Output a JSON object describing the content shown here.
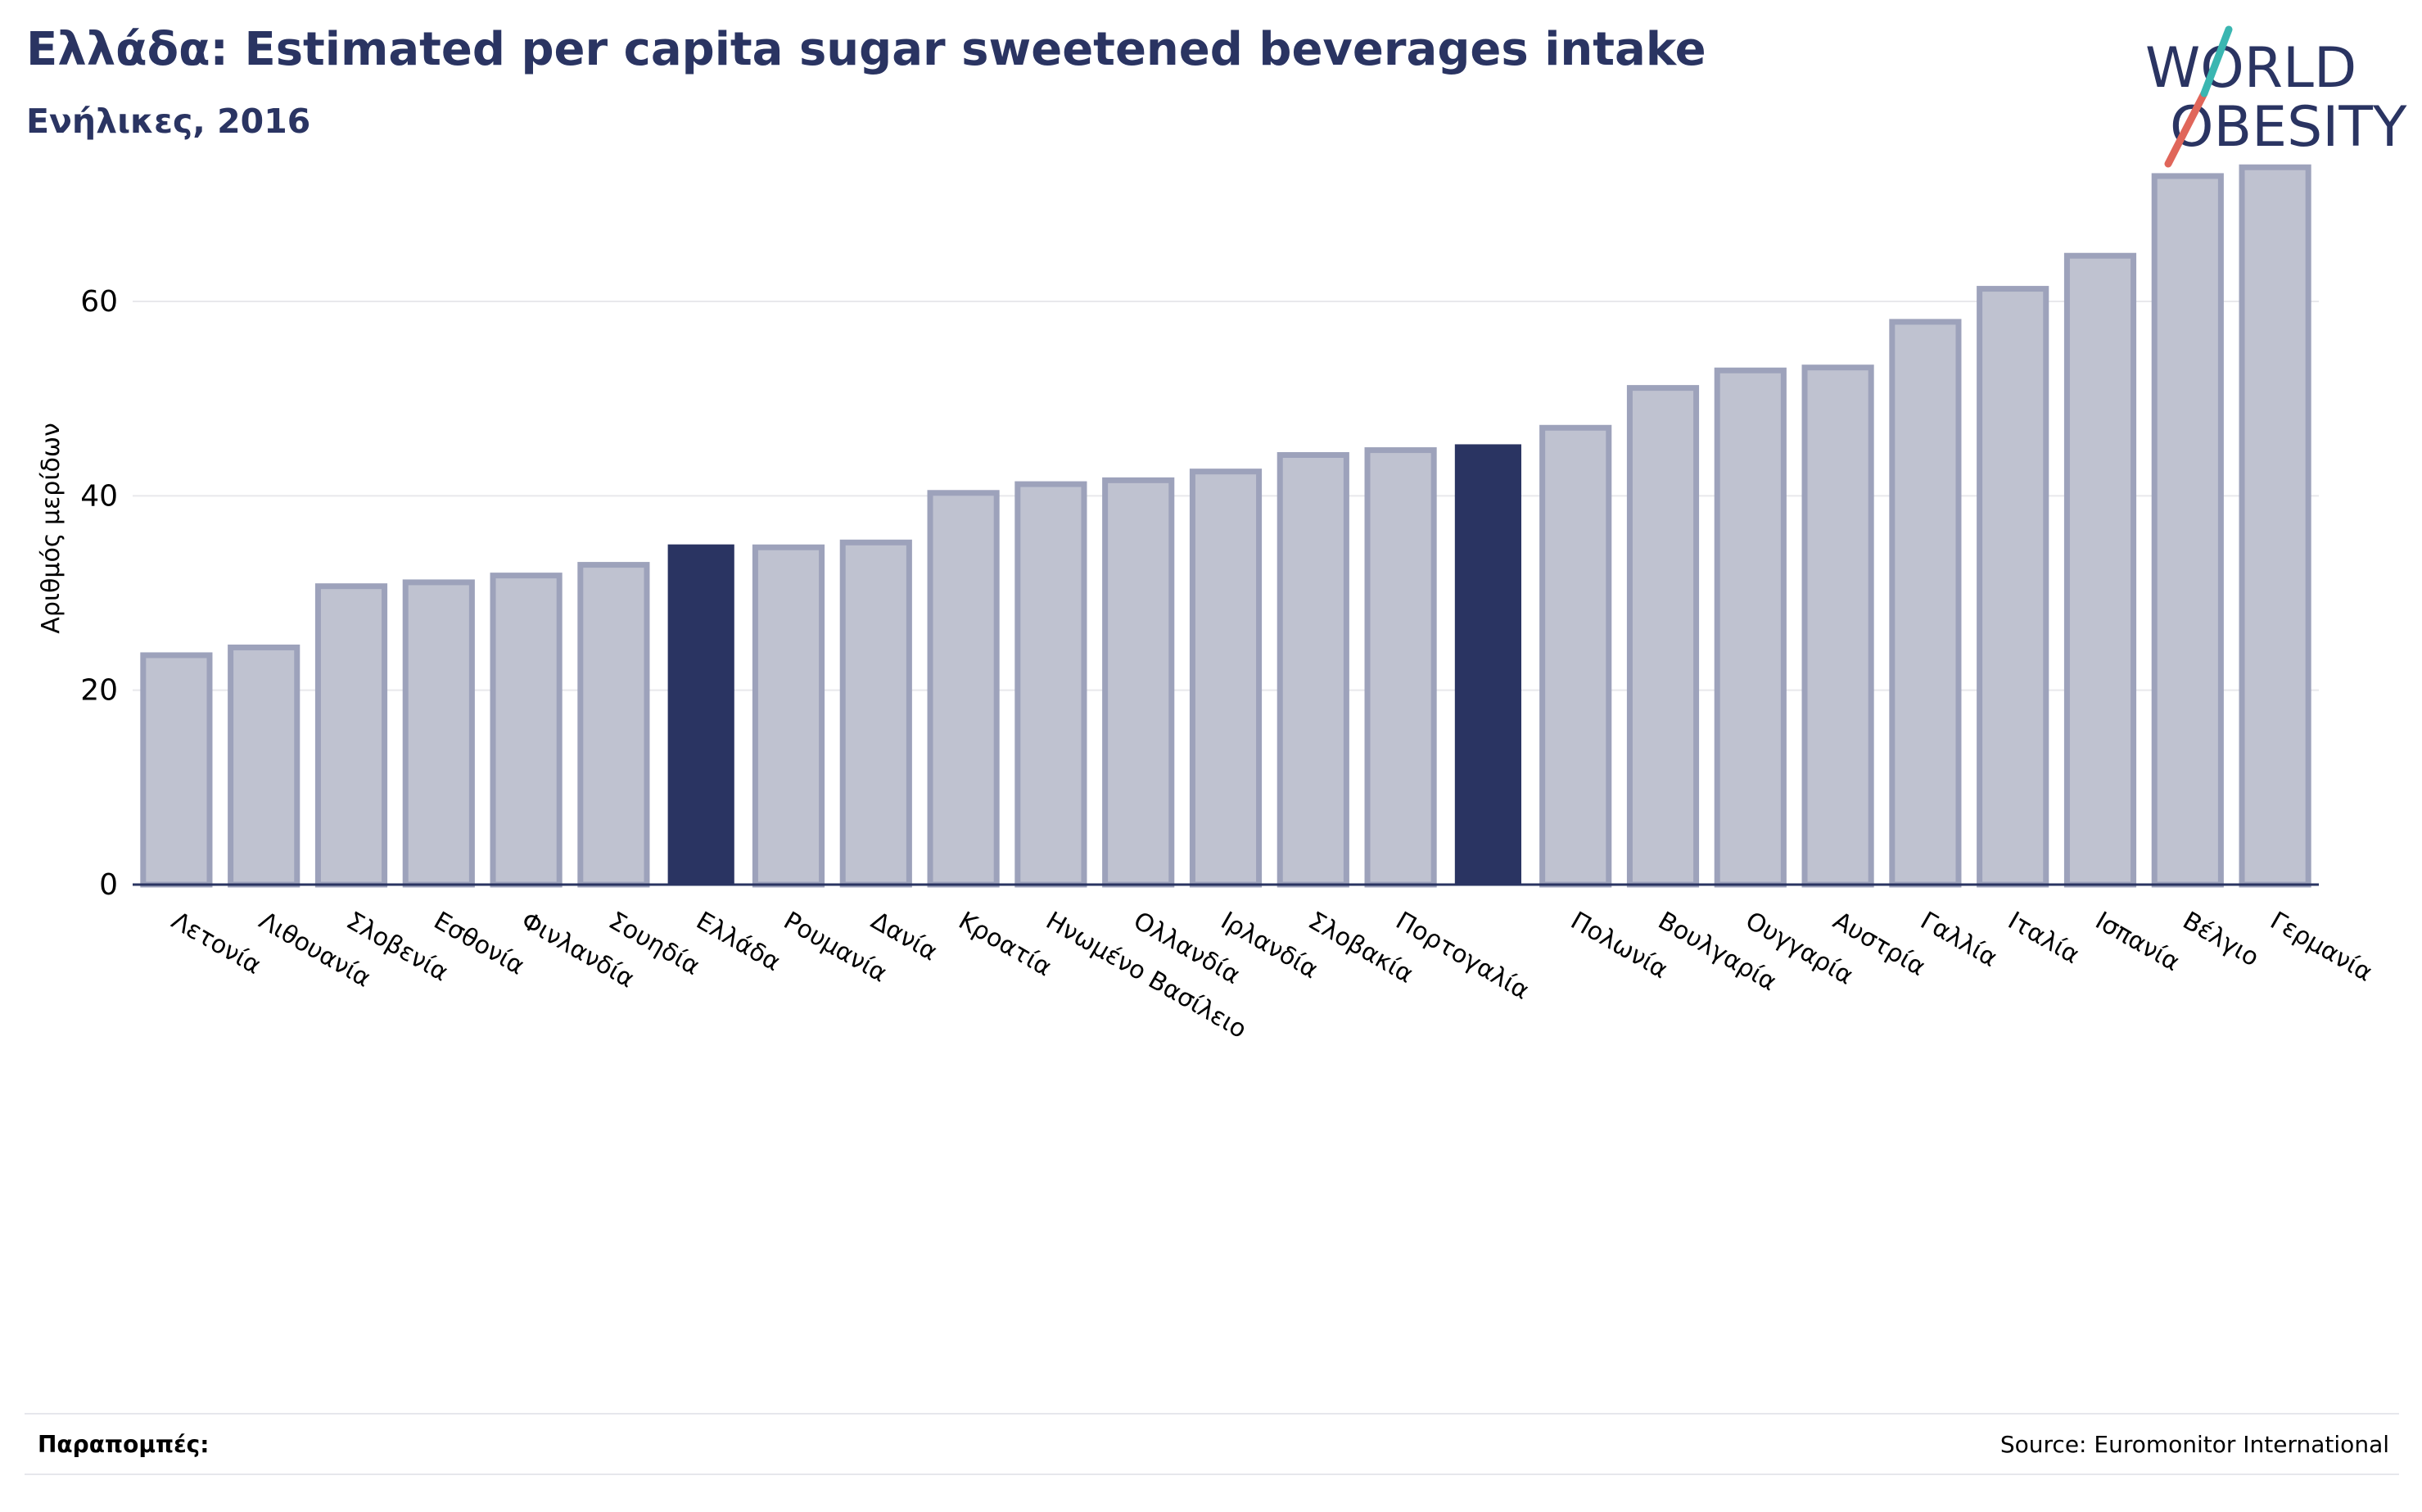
{
  "header": {
    "title": "Ελλάδα: Estimated per capita sugar sweetened beverages intake",
    "subtitle": "Ενήλικες, 2016"
  },
  "logo": {
    "line1": "WORLD",
    "line2": "OBESITY",
    "navy": "#2a3462",
    "teal": "#3ab6b1",
    "coral": "#e0665a"
  },
  "footer": {
    "references_label": "Παραπομπές:",
    "source": "Source: Euromonitor International"
  },
  "colors": {
    "bar_fill": "#bfc2d0",
    "bar_stroke": "#9da2bb",
    "highlight": "#2a3462",
    "grid": "#e8e8ec",
    "axis": "#2a3462"
  },
  "chart_data": {
    "type": "bar",
    "title": "Ελλάδα: Estimated per capita sugar sweetened beverages intake",
    "subtitle": "Ενήλικες, 2016",
    "ylabel": "Αριθμός μερίδων",
    "xlabel": "",
    "ylim": [
      0,
      75
    ],
    "yticks": [
      0,
      20,
      40,
      60
    ],
    "grid": true,
    "categories": [
      "Λετονία",
      "Λιθουανία",
      "Σλοβενία",
      "Εσθονία",
      "Φινλανδία",
      "Σουηδία",
      "Ελλάδα",
      "Ρουμανία",
      "Δανία",
      "Κροατία",
      "Ηνωμένο Βασίλειο",
      "Ολλανδία",
      "Ιρλανδία",
      "Σλοβακία",
      "Πορτογαλία",
      "",
      "Πολωνία",
      "Βουλγαρία",
      "Ουγγαρία",
      "Αυστρία",
      "Γαλλία",
      "Ιταλία",
      "Ισπανία",
      "Βέλγιο",
      "Γερμανία"
    ],
    "values": [
      23.6,
      24.4,
      30.7,
      31.1,
      31.8,
      32.9,
      35.0,
      34.7,
      35.2,
      40.3,
      41.2,
      41.6,
      42.5,
      44.2,
      44.7,
      45.3,
      47.0,
      51.1,
      52.9,
      53.2,
      57.9,
      61.3,
      64.7,
      72.9,
      73.8
    ],
    "highlighted": [
      "Ελλάδα",
      ""
    ],
    "highlight_indices": [
      6,
      15
    ]
  }
}
